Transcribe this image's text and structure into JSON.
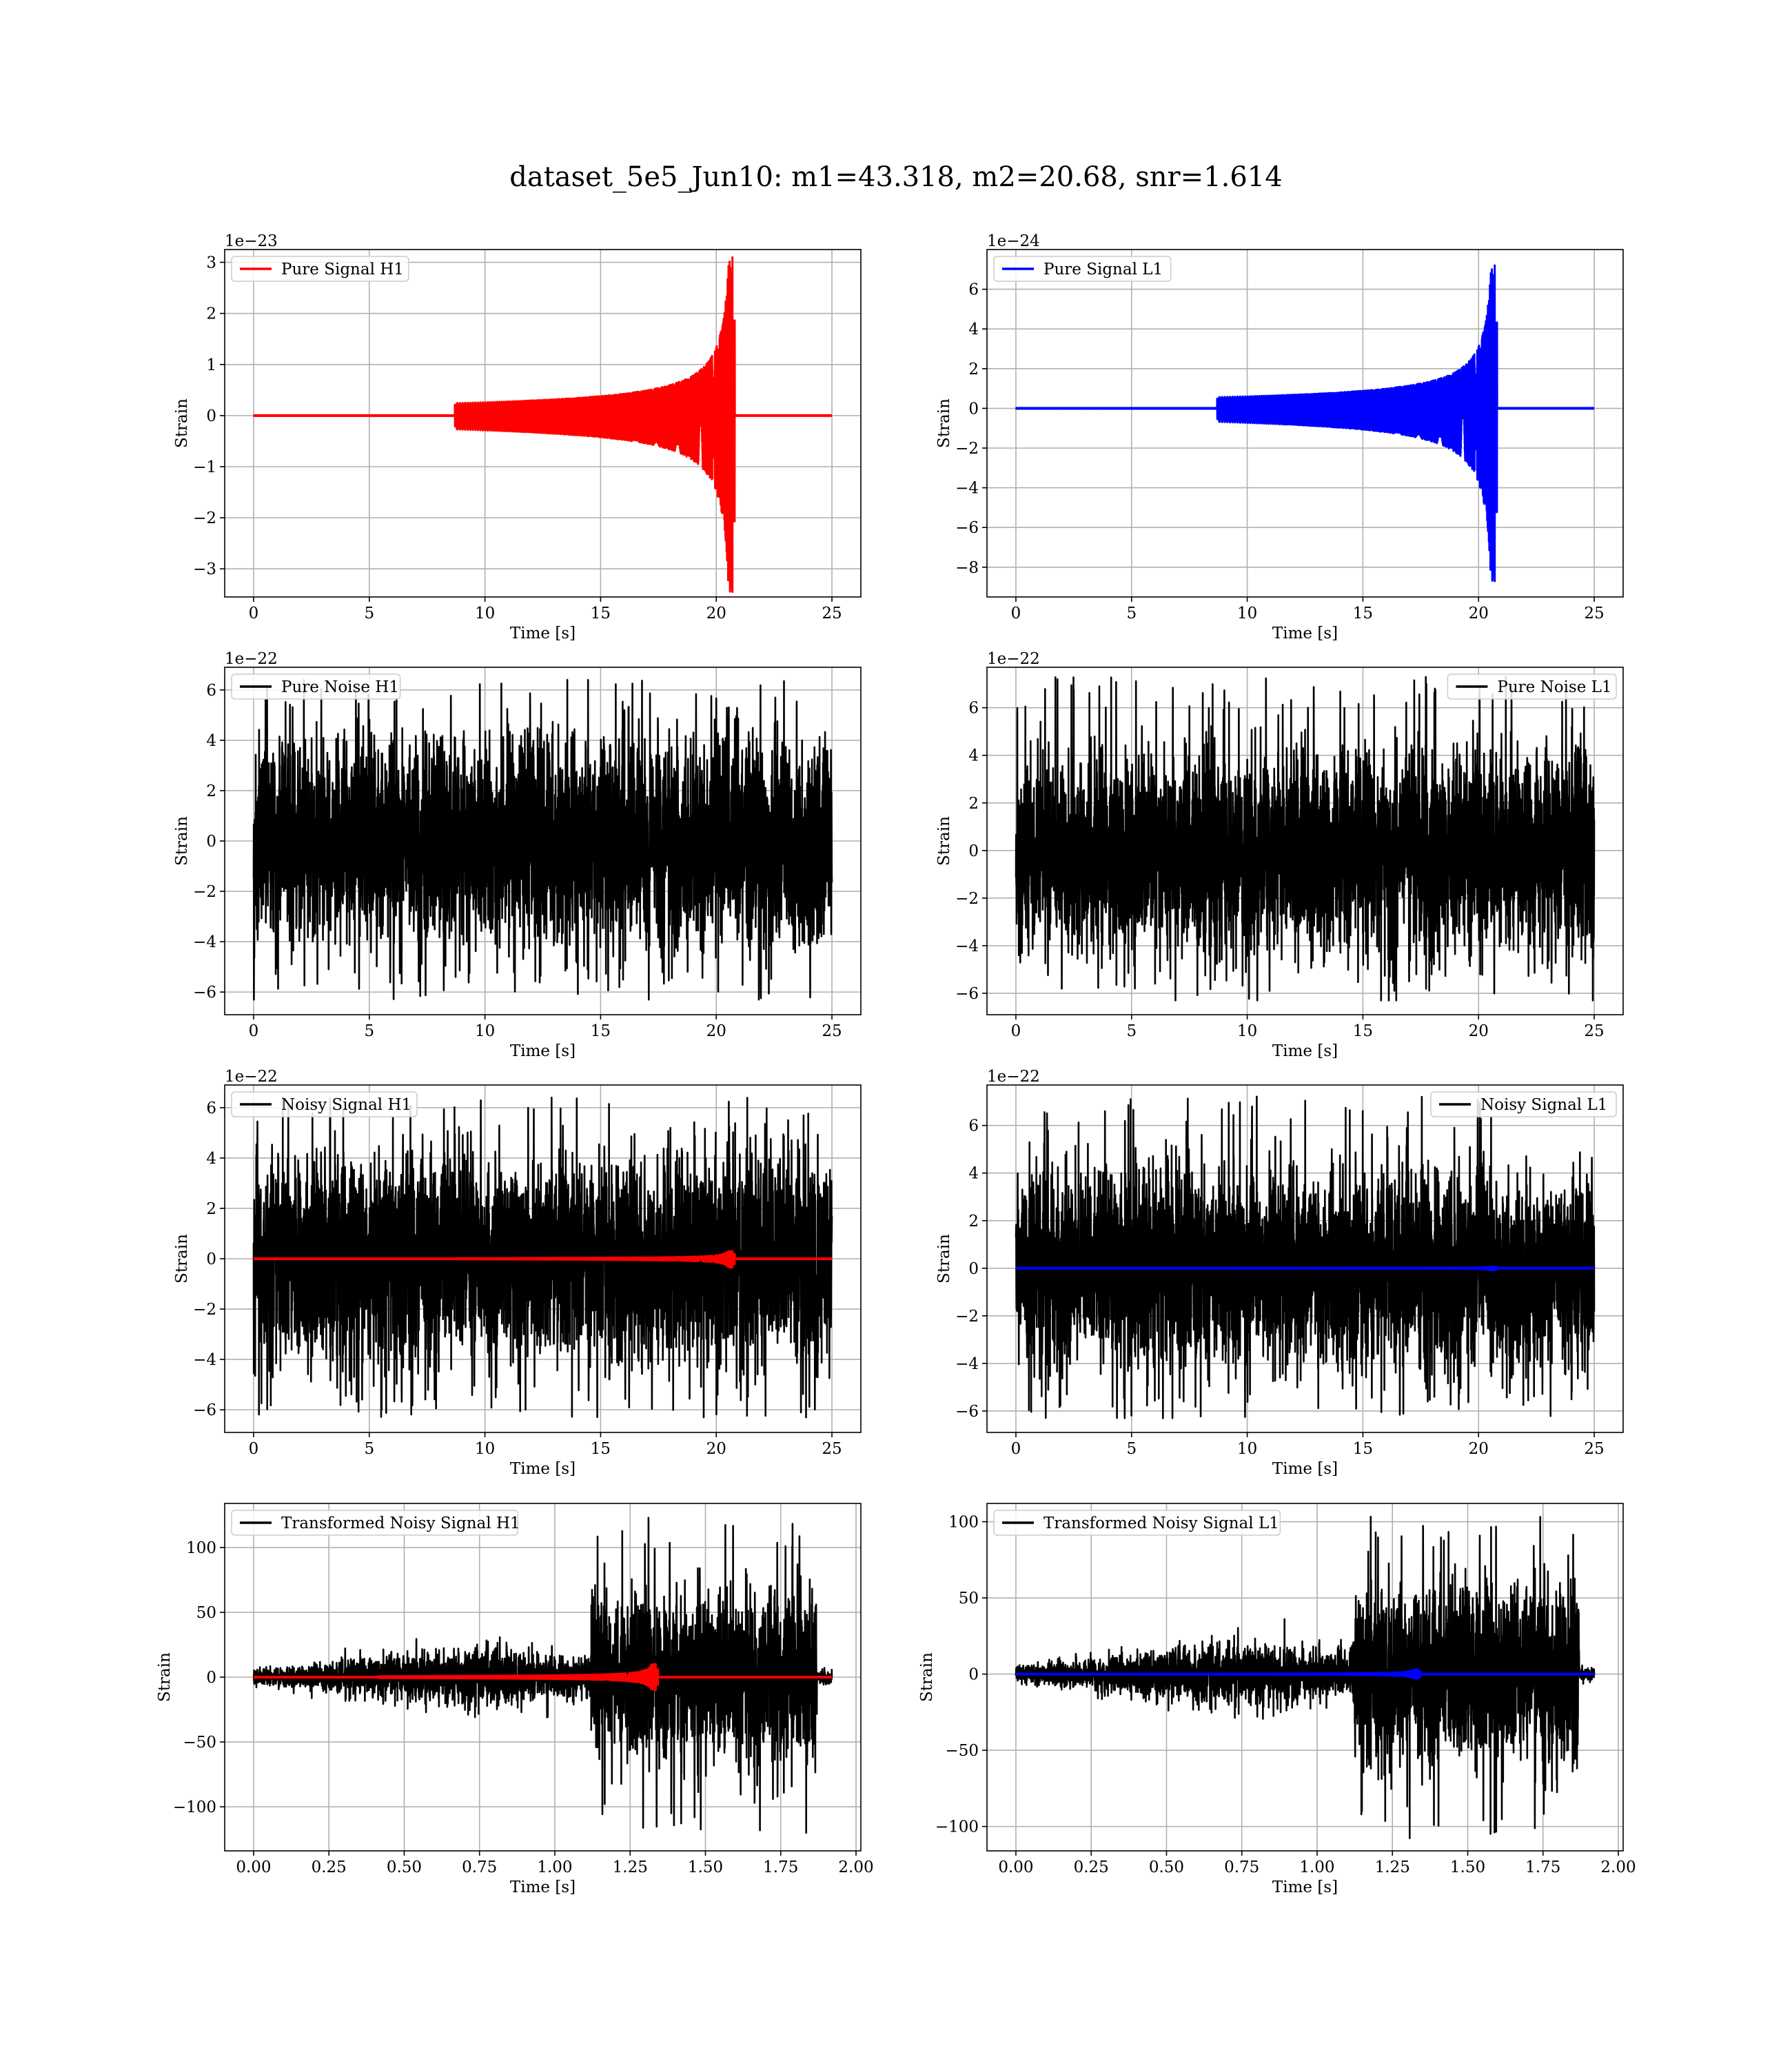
{
  "figure": {
    "title": "dataset_5e5_Jun10: m1=43.318, m2=20.68, snr=1.614"
  },
  "colors": {
    "h1_signal": "#ff0000",
    "l1_signal": "#0000ff",
    "noise": "#000000",
    "grid": "#b0b0b0"
  },
  "chart_data": [
    {
      "id": "pure-signal-h1",
      "type": "line",
      "row": 0,
      "col": 0,
      "xlabel": "Time [s]",
      "ylabel": "Strain",
      "offset": "1e−23",
      "xlim": [
        -1.25,
        26.25
      ],
      "ylim": [
        -3.55,
        3.25
      ],
      "xticks": [
        0,
        5,
        10,
        15,
        20,
        25
      ],
      "xtick_labels": [
        "0",
        "5",
        "10",
        "15",
        "20",
        "25"
      ],
      "yticks": [
        -3,
        -2,
        -1,
        0,
        1,
        2,
        3
      ],
      "ytick_labels": [
        "−3",
        "−2",
        "−1",
        "0",
        "1",
        "2",
        "3"
      ],
      "legend_loc": "upper left",
      "grid": true,
      "series": [
        {
          "name": "Pure Signal H1",
          "color": "#ff0000",
          "kind": "chirp",
          "t_start": 0,
          "t_end": 25,
          "t_merger": 20.7,
          "peak_pos": 3.1,
          "peak_neg": -3.45,
          "trace_ylim": null
        }
      ]
    },
    {
      "id": "pure-signal-l1",
      "type": "line",
      "row": 0,
      "col": 1,
      "xlabel": "Time [s]",
      "ylabel": "Strain",
      "offset": "1e−24",
      "xlim": [
        -1.25,
        26.25
      ],
      "ylim": [
        -9.5,
        8.0
      ],
      "xticks": [
        0,
        5,
        10,
        15,
        20,
        25
      ],
      "xtick_labels": [
        "0",
        "5",
        "10",
        "15",
        "20",
        "25"
      ],
      "yticks": [
        -8,
        -6,
        -4,
        -2,
        0,
        2,
        4,
        6
      ],
      "ytick_labels": [
        "−8",
        "−6",
        "−4",
        "−2",
        "0",
        "2",
        "4",
        "6"
      ],
      "legend_loc": "upper left",
      "grid": true,
      "series": [
        {
          "name": "Pure Signal L1",
          "color": "#0000ff",
          "kind": "chirp",
          "t_start": 0,
          "t_end": 25,
          "t_merger": 20.7,
          "peak_pos": 7.2,
          "peak_neg": -8.7,
          "trace_ylim": null
        }
      ]
    },
    {
      "id": "pure-noise-h1",
      "type": "line",
      "row": 1,
      "col": 0,
      "xlabel": "Time [s]",
      "ylabel": "Strain",
      "offset": "1e−22",
      "xlim": [
        -1.25,
        26.25
      ],
      "ylim": [
        -6.9,
        6.9
      ],
      "xticks": [
        0,
        5,
        10,
        15,
        20,
        25
      ],
      "xtick_labels": [
        "0",
        "5",
        "10",
        "15",
        "20",
        "25"
      ],
      "yticks": [
        -6,
        -4,
        -2,
        0,
        2,
        4,
        6
      ],
      "ytick_labels": [
        "−6",
        "−4",
        "−2",
        "0",
        "2",
        "4",
        "6"
      ],
      "legend_loc": "upper left",
      "grid": true,
      "series": [
        {
          "name": "Pure Noise H1",
          "color": "#000000",
          "kind": "noise",
          "t_start": 0,
          "t_end": 25,
          "amplitude": 4.4,
          "max": 6.4,
          "min": -6.3
        }
      ]
    },
    {
      "id": "pure-noise-l1",
      "type": "line",
      "row": 1,
      "col": 1,
      "xlabel": "Time [s]",
      "ylabel": "Strain",
      "offset": "1e−22",
      "xlim": [
        -1.25,
        26.25
      ],
      "ylim": [
        -6.9,
        7.7
      ],
      "xticks": [
        0,
        5,
        10,
        15,
        20,
        25
      ],
      "xtick_labels": [
        "0",
        "5",
        "10",
        "15",
        "20",
        "25"
      ],
      "yticks": [
        -6,
        -4,
        -2,
        0,
        2,
        4,
        6
      ],
      "ytick_labels": [
        "−6",
        "−4",
        "−2",
        "0",
        "2",
        "4",
        "6"
      ],
      "legend_loc": "upper right",
      "grid": true,
      "series": [
        {
          "name": "Pure Noise L1",
          "color": "#000000",
          "kind": "noise",
          "t_start": 0,
          "t_end": 25,
          "amplitude": 4.5,
          "max": 7.3,
          "min": -6.3
        }
      ]
    },
    {
      "id": "noisy-signal-h1",
      "type": "line",
      "row": 2,
      "col": 0,
      "xlabel": "Time [s]",
      "ylabel": "Strain",
      "offset": "1e−22",
      "xlim": [
        -1.25,
        26.25
      ],
      "ylim": [
        -6.9,
        6.9
      ],
      "xticks": [
        0,
        5,
        10,
        15,
        20,
        25
      ],
      "xtick_labels": [
        "0",
        "5",
        "10",
        "15",
        "20",
        "25"
      ],
      "yticks": [
        -6,
        -4,
        -2,
        0,
        2,
        4,
        6
      ],
      "ytick_labels": [
        "−6",
        "−4",
        "−2",
        "0",
        "2",
        "4",
        "6"
      ],
      "legend_loc": "upper left",
      "grid": true,
      "series": [
        {
          "name": "Noisy Signal H1",
          "color": "#000000",
          "kind": "noise",
          "t_start": 0,
          "t_end": 25,
          "amplitude": 4.4,
          "max": 6.4,
          "min": -6.3
        },
        {
          "name": "",
          "color": "#ff0000",
          "kind": "chirp",
          "t_start": 0,
          "t_end": 25,
          "t_merger": 20.7,
          "peak_pos": 0.31,
          "peak_neg": -0.35,
          "trace_ylim": null
        }
      ]
    },
    {
      "id": "noisy-signal-l1",
      "type": "line",
      "row": 2,
      "col": 1,
      "xlabel": "Time [s]",
      "ylabel": "Strain",
      "offset": "1e−22",
      "xlim": [
        -1.25,
        26.25
      ],
      "ylim": [
        -6.9,
        7.7
      ],
      "xticks": [
        0,
        5,
        10,
        15,
        20,
        25
      ],
      "xtick_labels": [
        "0",
        "5",
        "10",
        "15",
        "20",
        "25"
      ],
      "yticks": [
        -6,
        -4,
        -2,
        0,
        2,
        4,
        6
      ],
      "ytick_labels": [
        "−6",
        "−4",
        "−2",
        "0",
        "2",
        "4",
        "6"
      ],
      "legend_loc": "upper right",
      "grid": true,
      "series": [
        {
          "name": "Noisy Signal L1",
          "color": "#000000",
          "kind": "noise",
          "t_start": 0,
          "t_end": 25,
          "amplitude": 4.5,
          "max": 7.3,
          "min": -6.3
        },
        {
          "name": "",
          "color": "#0000ff",
          "kind": "chirp",
          "t_start": 0,
          "t_end": 25,
          "t_merger": 20.7,
          "peak_pos": 0.07,
          "peak_neg": -0.09,
          "trace_ylim": null
        }
      ]
    },
    {
      "id": "transformed-noisy-signal-h1",
      "type": "line",
      "row": 3,
      "col": 0,
      "xlabel": "Time [s]",
      "ylabel": "Strain",
      "offset": "",
      "xlim": [
        -0.096,
        2.016
      ],
      "ylim": [
        -134,
        134
      ],
      "xticks": [
        0,
        0.25,
        0.5,
        0.75,
        1.0,
        1.25,
        1.5,
        1.75,
        2.0
      ],
      "xtick_labels": [
        "0.00",
        "0.25",
        "0.50",
        "0.75",
        "1.00",
        "1.25",
        "1.50",
        "1.75",
        "2.00"
      ],
      "yticks": [
        -100,
        -50,
        0,
        50,
        100
      ],
      "ytick_labels": [
        "−100",
        "−50",
        "0",
        "50",
        "100"
      ],
      "legend_loc": "upper left",
      "grid": true,
      "series": [
        {
          "name": "Transformed Noisy Signal H1",
          "color": "#000000",
          "kind": "transformed",
          "t_start": 0,
          "t_end": 1.92,
          "t_jump": 1.12,
          "t_drop": 1.87,
          "low_amp": 12,
          "mid_amp": 22,
          "high_amp": 72,
          "max": 123,
          "min": -120
        },
        {
          "name": "",
          "color": "#ff0000",
          "kind": "chirp",
          "t_start": 0,
          "t_end": 1.92,
          "t_merger": 1.335,
          "peak_pos": 10,
          "peak_neg": -10,
          "trace_ylim": null
        }
      ]
    },
    {
      "id": "transformed-noisy-signal-l1",
      "type": "line",
      "row": 3,
      "col": 1,
      "xlabel": "Time [s]",
      "ylabel": "Strain",
      "offset": "",
      "xlim": [
        -0.096,
        2.016
      ],
      "ylim": [
        -116,
        112
      ],
      "xticks": [
        0,
        0.25,
        0.5,
        0.75,
        1.0,
        1.25,
        1.5,
        1.75,
        2.0
      ],
      "xtick_labels": [
        "0.00",
        "0.25",
        "0.50",
        "0.75",
        "1.00",
        "1.25",
        "1.50",
        "1.75",
        "2.00"
      ],
      "yticks": [
        -100,
        -50,
        0,
        50,
        100
      ],
      "ytick_labels": [
        "−100",
        "−50",
        "0",
        "50",
        "100"
      ],
      "legend_loc": "upper left",
      "grid": true,
      "series": [
        {
          "name": "Transformed Noisy Signal L1",
          "color": "#000000",
          "kind": "transformed",
          "t_start": 0,
          "t_end": 1.92,
          "t_jump": 1.12,
          "t_drop": 1.87,
          "low_amp": 10,
          "mid_amp": 22,
          "high_amp": 68,
          "max": 104,
          "min": -108
        },
        {
          "name": "",
          "color": "#0000ff",
          "kind": "chirp",
          "t_start": 0,
          "t_end": 1.92,
          "t_merger": 1.335,
          "peak_pos": 3,
          "peak_neg": -3,
          "trace_ylim": null
        }
      ]
    }
  ]
}
